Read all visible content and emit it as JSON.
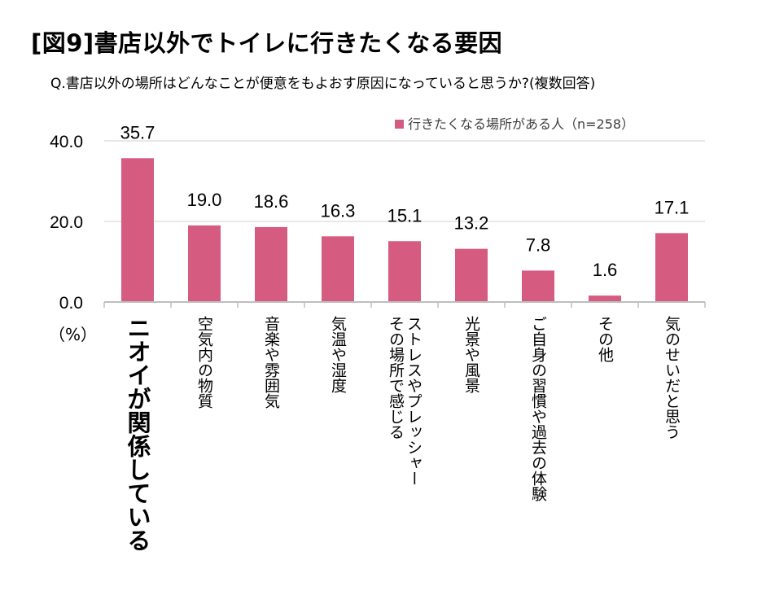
{
  "title": "[図9]書店以外でトイレに行きたくなる要因",
  "subtitle": "Q.書店以外の場所はどんなことが便意をもよおす原因になっていると思うか?(複数回答)",
  "colors": {
    "bar": "#d65b80",
    "grid": "#d9d9d9",
    "axis": "#bfbfbf"
  },
  "chart_data": {
    "type": "bar",
    "title": "[図9]書店以外でトイレに行きたくなる要因",
    "subtitle": "Q.書店以外の場所はどんなことが便意をもよおす原因になっていると思うか?(複数回答)",
    "categories": [
      "ニオイが関係している",
      "空気内の物質",
      "音楽や雰囲気",
      "気温や湿度",
      "その場所で感じるストレスやプレッシャー",
      "光景や風景",
      "ご自身の習慣や過去の体験",
      "その他",
      "気のせいだと思う"
    ],
    "category_lines": [
      [
        "ニオイが関係している"
      ],
      [
        "空気内の物質"
      ],
      [
        "音楽や雰囲気"
      ],
      [
        "気温や湿度"
      ],
      [
        "ストレスやプレッシャー",
        "その場所で感じる"
      ],
      [
        "光景や風景"
      ],
      [
        "ご自身の習慣や過去の体験"
      ],
      [
        "その他"
      ],
      [
        "気のせいだと思う"
      ]
    ],
    "series": [
      {
        "name": "行きたくなる場所がある人（n=258）",
        "values": [
          35.7,
          19.0,
          18.6,
          16.3,
          15.1,
          13.2,
          7.8,
          1.6,
          17.1
        ]
      }
    ],
    "value_labels": [
      "35.7",
      "19.0",
      "18.6",
      "16.3",
      "15.1",
      "13.2",
      "7.8",
      "1.6",
      "17.1"
    ],
    "highlight_index": 0,
    "ylim": [
      0,
      40
    ],
    "yticks": [
      0,
      20,
      40
    ],
    "ytick_labels": [
      "0.0",
      "20.0",
      "40.0"
    ],
    "ylabel": "（%）",
    "xlabel": "",
    "grid": true,
    "legend_position": "top-right"
  }
}
